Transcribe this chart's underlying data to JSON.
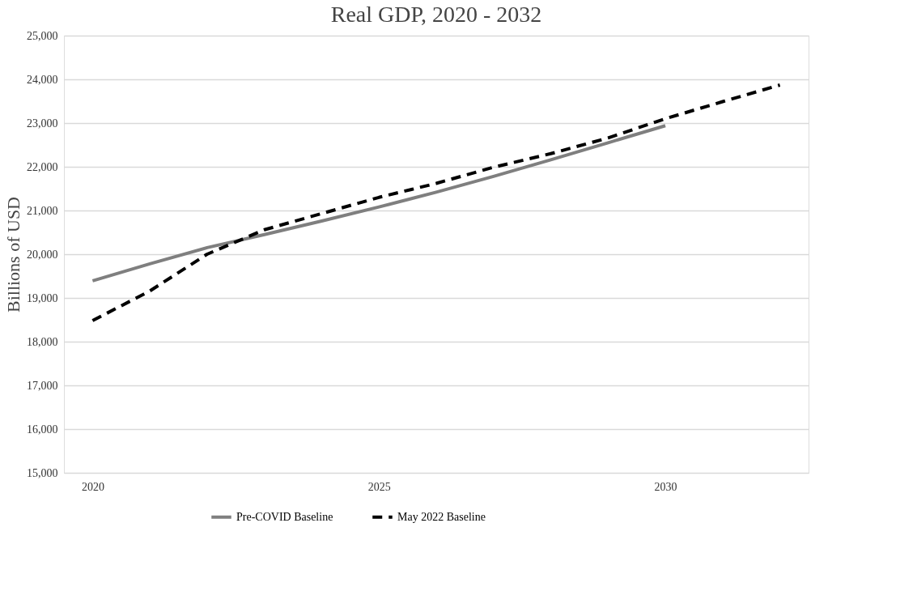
{
  "chart_data": {
    "type": "line",
    "title": "Real GDP, 2020 - 2032",
    "ylabel": "Billions of USD",
    "xlim": [
      2019.5,
      2032.5
    ],
    "xticks": [
      2020,
      2025,
      2030
    ],
    "ylim": [
      15000,
      25000
    ],
    "yticks": [
      {
        "value": 15000,
        "label": "15,000"
      },
      {
        "value": 16000,
        "label": "16,000"
      },
      {
        "value": 17000,
        "label": "17,000"
      },
      {
        "value": 18000,
        "label": "18,000"
      },
      {
        "value": 19000,
        "label": "19,000"
      },
      {
        "value": 20000,
        "label": "20,000"
      },
      {
        "value": 21000,
        "label": "21,000"
      },
      {
        "value": 22000,
        "label": "22,000"
      },
      {
        "value": 23000,
        "label": "23,000"
      },
      {
        "value": 24000,
        "label": "24,000"
      },
      {
        "value": 25000,
        "label": "25,000"
      }
    ],
    "grid": "y",
    "legend": "bottom",
    "marker": "none",
    "series": [
      {
        "name": "Pre-COVID Baseline",
        "color": "#7f7f7f",
        "line_style": "solid",
        "x": [
          2020,
          2021,
          2022,
          2023,
          2024,
          2025,
          2026,
          2027,
          2028,
          2029,
          2030
        ],
        "values": [
          19390,
          19780,
          20150,
          20450,
          20760,
          21080,
          21420,
          21780,
          22160,
          22550,
          22940
        ]
      },
      {
        "name": "May 2022 Baseline",
        "color": "#000000",
        "line_style": "dashed",
        "x": [
          2020,
          2021,
          2022,
          2023,
          2024,
          2025,
          2026,
          2027,
          2028,
          2029,
          2030,
          2031,
          2032
        ],
        "values": [
          18480,
          19160,
          20000,
          20560,
          20930,
          21300,
          21620,
          21990,
          22300,
          22660,
          23100,
          23490,
          23870
        ]
      }
    ]
  }
}
